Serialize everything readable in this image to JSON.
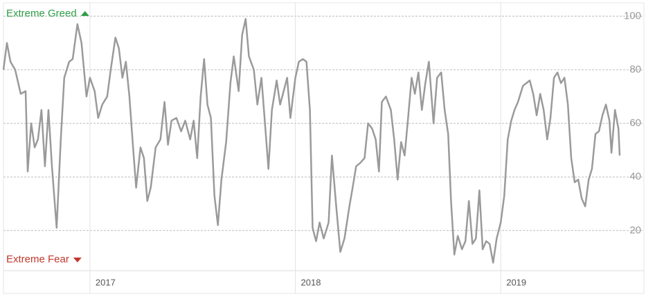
{
  "chart_data": {
    "type": "line",
    "annotations": {
      "top": "Extreme Greed",
      "bottom": "Extreme Fear",
      "top_color": "#2e9e46",
      "bottom_color": "#c0392b"
    },
    "color": "#9a9a9a",
    "xlim": [
      2016.579,
      2019.697
    ],
    "xticks": [
      2017,
      2018,
      2019
    ],
    "ylim": [
      5,
      105
    ],
    "yticks": [
      20,
      40,
      60,
      80,
      100
    ],
    "grid": true,
    "x": [
      2016.579,
      2016.596,
      2016.613,
      2016.636,
      2016.663,
      2016.687,
      2016.697,
      2016.714,
      2016.731,
      2016.747,
      2016.764,
      2016.781,
      2016.798,
      2016.815,
      2016.838,
      2016.858,
      2016.875,
      2016.899,
      2016.916,
      2016.939,
      2016.959,
      2016.983,
      2017.0,
      2017.023,
      2017.04,
      2017.06,
      2017.084,
      2017.101,
      2017.124,
      2017.141,
      2017.158,
      2017.175,
      2017.192,
      2017.209,
      2017.225,
      2017.246,
      2017.263,
      2017.279,
      2017.296,
      2017.32,
      2017.343,
      2017.363,
      2017.38,
      2017.397,
      2017.421,
      2017.444,
      2017.464,
      2017.488,
      2017.505,
      2017.522,
      2017.539,
      2017.556,
      2017.572,
      2017.589,
      2017.606,
      2017.623,
      2017.64,
      2017.663,
      2017.684,
      2017.7,
      2017.724,
      2017.741,
      2017.758,
      2017.774,
      2017.798,
      2017.815,
      2017.835,
      2017.852,
      2017.869,
      2017.886,
      2017.909,
      2017.926,
      2017.943,
      2017.96,
      2017.976,
      2018.0,
      2018.017,
      2018.037,
      2018.054,
      2018.071,
      2018.084,
      2018.101,
      2018.118,
      2018.138,
      2018.162,
      2018.178,
      2018.199,
      2018.219,
      2018.239,
      2018.263,
      2018.279,
      2018.296,
      2018.313,
      2018.337,
      2018.354,
      2018.374,
      2018.391,
      2018.407,
      2018.421,
      2018.441,
      2018.465,
      2018.481,
      2018.498,
      2018.515,
      2018.532,
      2018.549,
      2018.566,
      2018.582,
      2018.599,
      2018.616,
      2018.633,
      2018.65,
      2018.673,
      2018.69,
      2018.71,
      2018.727,
      2018.744,
      2018.758,
      2018.774,
      2018.791,
      2018.811,
      2018.828,
      2018.845,
      2018.862,
      2018.879,
      2018.896,
      2018.912,
      2018.929,
      2018.946,
      2018.963,
      2018.98,
      2019.0,
      2019.017,
      2019.034,
      2019.051,
      2019.067,
      2019.084,
      2019.108,
      2019.125,
      2019.141,
      2019.158,
      2019.175,
      2019.192,
      2019.209,
      2019.226,
      2019.242,
      2019.259,
      2019.276,
      2019.293,
      2019.31,
      2019.327,
      2019.343,
      2019.36,
      2019.377,
      2019.394,
      2019.411,
      2019.428,
      2019.444,
      2019.461,
      2019.478,
      2019.495,
      2019.512,
      2019.529,
      2019.539,
      2019.556,
      2019.573,
      2019.579
    ],
    "values": [
      80,
      90,
      83,
      80,
      71,
      72,
      42,
      60,
      51,
      54,
      65,
      44,
      65,
      44,
      21,
      54,
      77,
      83,
      84,
      97,
      90,
      70,
      77,
      72,
      62,
      67,
      70,
      80,
      92,
      88,
      77,
      83,
      70,
      52,
      36,
      51,
      47,
      31,
      36,
      51,
      54,
      68,
      52,
      61,
      62,
      57,
      61,
      54,
      61,
      47,
      70,
      84,
      67,
      62,
      33,
      22,
      39,
      53,
      75,
      85,
      72,
      93,
      99,
      85,
      80,
      67,
      77,
      60,
      43,
      65,
      76,
      67,
      72,
      77,
      62,
      77,
      83,
      84,
      83,
      65,
      21,
      16,
      23,
      17,
      23,
      48,
      29,
      12,
      17,
      29,
      36,
      44,
      45,
      47,
      60,
      58,
      54,
      42,
      68,
      70,
      65,
      54,
      39,
      53,
      48,
      62,
      77,
      71,
      79,
      65,
      75,
      83,
      60,
      77,
      79,
      65,
      56,
      31,
      11,
      18,
      13,
      16,
      31,
      15,
      17,
      35,
      13,
      16,
      15,
      8,
      17,
      23,
      33,
      54,
      61,
      65,
      68,
      74,
      75,
      76,
      71,
      63,
      71,
      65,
      54,
      62,
      77,
      79,
      75,
      77,
      67,
      47,
      38,
      39,
      32,
      29,
      39,
      43,
      56,
      57,
      63,
      67,
      61,
      49,
      65,
      58,
      48
    ]
  }
}
